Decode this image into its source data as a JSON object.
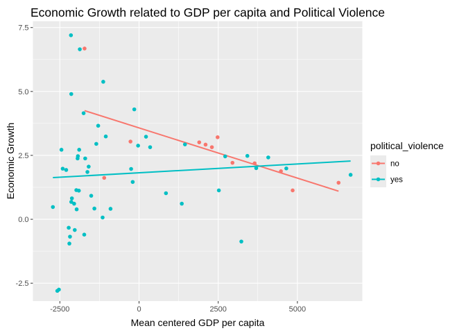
{
  "chart_data": {
    "type": "scatter",
    "title": "Economic Growth related to GDP per capita and Political Violence",
    "xlabel": "Mean centered GDP per capita",
    "ylabel": "Economic Growth",
    "xlim": [
      -3350,
      7050
    ],
    "ylim": [
      -3.2,
      7.75
    ],
    "x_ticks": [
      -2500,
      0,
      2500,
      5000
    ],
    "x_tick_labels": [
      "-2500",
      "0",
      "2500",
      "5000"
    ],
    "y_ticks": [
      -2.5,
      0,
      2.5,
      5,
      7.5
    ],
    "y_tick_labels": [
      "-2.5",
      "0.0",
      "2.5",
      "5.0",
      "7.5"
    ],
    "grid": true,
    "legend": {
      "title": "political_violence",
      "position": "right",
      "entries": [
        "no",
        "yes"
      ]
    },
    "series": [
      {
        "name": "no",
        "color": "#F8766D",
        "points": [
          [
            -1720,
            6.68
          ],
          [
            -1100,
            1.62
          ],
          [
            -270,
            3.04
          ],
          [
            1900,
            3.01
          ],
          [
            2100,
            2.92
          ],
          [
            2300,
            2.82
          ],
          [
            2480,
            3.21
          ],
          [
            2950,
            2.21
          ],
          [
            3650,
            2.19
          ],
          [
            4480,
            1.88
          ],
          [
            4850,
            1.13
          ],
          [
            6300,
            1.43
          ]
        ],
        "trend": [
          [
            -1720,
            4.25
          ],
          [
            6300,
            1.1
          ]
        ]
      },
      {
        "name": "yes",
        "color": "#00BFC4",
        "points": [
          [
            -2720,
            0.48
          ],
          [
            -2580,
            -2.8
          ],
          [
            -2530,
            -2.75
          ],
          [
            -2450,
            2.72
          ],
          [
            -2410,
            1.98
          ],
          [
            -2300,
            1.93
          ],
          [
            -2220,
            -0.33
          ],
          [
            -2200,
            -0.95
          ],
          [
            -2180,
            -0.68
          ],
          [
            -2150,
            7.2
          ],
          [
            -2140,
            4.9
          ],
          [
            -2140,
            0.68
          ],
          [
            -2120,
            0.82
          ],
          [
            -2050,
            0.61
          ],
          [
            -2030,
            -0.42
          ],
          [
            -1980,
            1.14
          ],
          [
            -1970,
            0.39
          ],
          [
            -1940,
            2.38
          ],
          [
            -1930,
            2.47
          ],
          [
            -1900,
            1.12
          ],
          [
            -1890,
            2.72
          ],
          [
            -1870,
            6.65
          ],
          [
            -1750,
            4.15
          ],
          [
            -1730,
            -0.6
          ],
          [
            -1700,
            2.38
          ],
          [
            -1630,
            1.85
          ],
          [
            -1590,
            2.06
          ],
          [
            -1510,
            0.92
          ],
          [
            -1410,
            0.42
          ],
          [
            -1350,
            2.95
          ],
          [
            -1290,
            3.66
          ],
          [
            -1150,
            0.07
          ],
          [
            -1130,
            5.38
          ],
          [
            -1050,
            3.24
          ],
          [
            -900,
            0.41
          ],
          [
            -250,
            1.97
          ],
          [
            -200,
            1.46
          ],
          [
            -150,
            4.3
          ],
          [
            -30,
            2.88
          ],
          [
            220,
            3.23
          ],
          [
            350,
            2.82
          ],
          [
            850,
            1.02
          ],
          [
            1350,
            0.61
          ],
          [
            1450,
            2.93
          ],
          [
            2520,
            1.13
          ],
          [
            2720,
            2.46
          ],
          [
            3230,
            -0.87
          ],
          [
            3420,
            2.48
          ],
          [
            3700,
            2.0
          ],
          [
            4080,
            2.42
          ],
          [
            4650,
            1.99
          ],
          [
            6680,
            1.74
          ]
        ],
        "trend": [
          [
            -2720,
            1.63
          ],
          [
            6680,
            2.28
          ]
        ]
      }
    ]
  }
}
